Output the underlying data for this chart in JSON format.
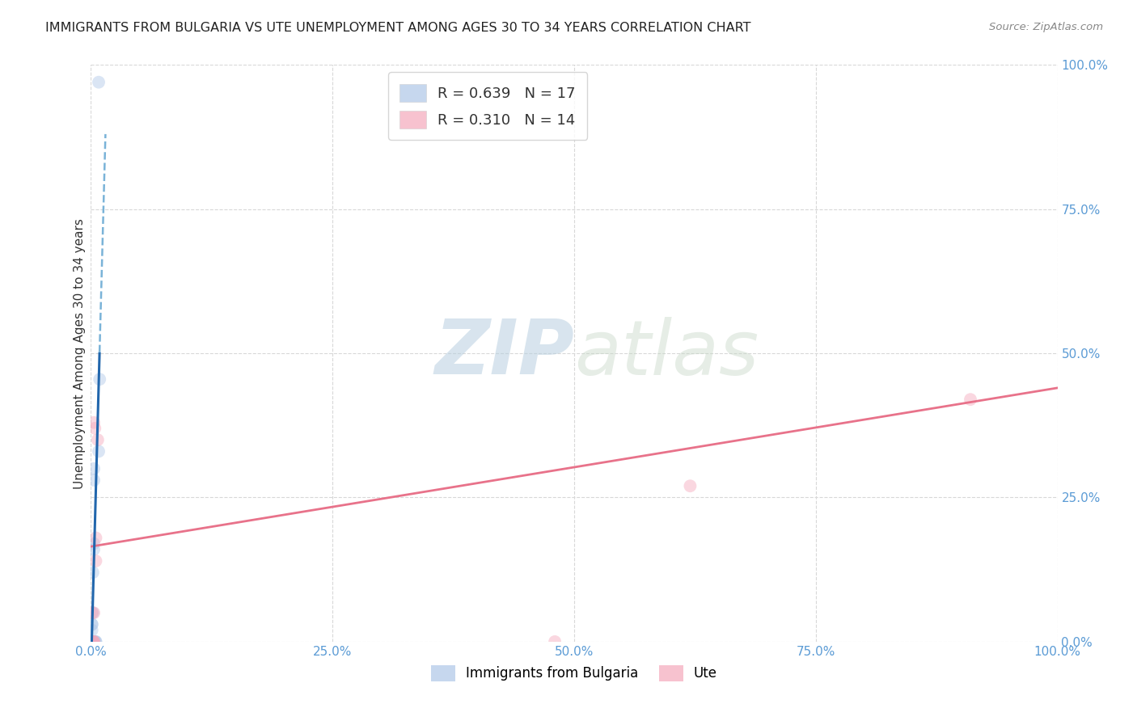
{
  "title": "IMMIGRANTS FROM BULGARIA VS UTE UNEMPLOYMENT AMONG AGES 30 TO 34 YEARS CORRELATION CHART",
  "source": "Source: ZipAtlas.com",
  "ylabel": "Unemployment Among Ages 30 to 34 years",
  "xlim": [
    0,
    1.0
  ],
  "ylim": [
    0,
    1.0
  ],
  "xticks": [
    0,
    0.25,
    0.5,
    0.75,
    1.0
  ],
  "yticks": [
    0,
    0.25,
    0.5,
    0.75,
    1.0
  ],
  "xtick_labels": [
    "0.0%",
    "25.0%",
    "50.0%",
    "75.0%",
    "100.0%"
  ],
  "ytick_labels": [
    "0.0%",
    "25.0%",
    "50.0%",
    "75.0%",
    "100.0%"
  ],
  "blue_scatter_x": [
    0.008,
    0.003,
    0.003,
    0.001,
    0.002,
    0.002,
    0.001,
    0.001,
    0.001,
    0.003,
    0.003,
    0.002,
    0.005,
    0.005,
    0.004,
    0.008,
    0.009
  ],
  "blue_scatter_y": [
    0.97,
    0.3,
    0.28,
    0.0,
    0.0,
    0.05,
    0.03,
    0.03,
    0.02,
    0.16,
    0.17,
    0.12,
    0.0,
    0.0,
    0.0,
    0.33,
    0.455
  ],
  "pink_scatter_x": [
    0.003,
    0.004,
    0.002,
    0.003,
    0.001,
    0.005,
    0.007,
    0.005,
    0.62,
    0.002,
    0.003,
    0.003,
    0.48,
    0.91
  ],
  "pink_scatter_y": [
    0.38,
    0.37,
    0.0,
    0.05,
    0.05,
    0.14,
    0.35,
    0.18,
    0.27,
    0.0,
    0.0,
    0.0,
    0.0,
    0.42
  ],
  "blue_color": "#aec6e8",
  "pink_color": "#f4a8bb",
  "blue_line_color": "#2166ac",
  "pink_line_color": "#e8728a",
  "blue_dash_color": "#7ab3d8",
  "legend_r_blue": "R = 0.639",
  "legend_n_blue": "N = 17",
  "legend_r_pink": "R = 0.310",
  "legend_n_pink": "N = 14",
  "legend_label_blue": "Immigrants from Bulgaria",
  "legend_label_pink": "Ute",
  "watermark_zip": "ZIP",
  "watermark_atlas": "atlas",
  "background_color": "#ffffff",
  "grid_color": "#d8d8d8",
  "title_fontsize": 11.5,
  "axis_label_fontsize": 11,
  "tick_fontsize": 11,
  "scatter_size": 130,
  "scatter_alpha": 0.45,
  "blue_trend_slope": 62.0,
  "blue_trend_intercept": -0.05,
  "pink_trend_slope": 0.275,
  "pink_trend_intercept": 0.165
}
